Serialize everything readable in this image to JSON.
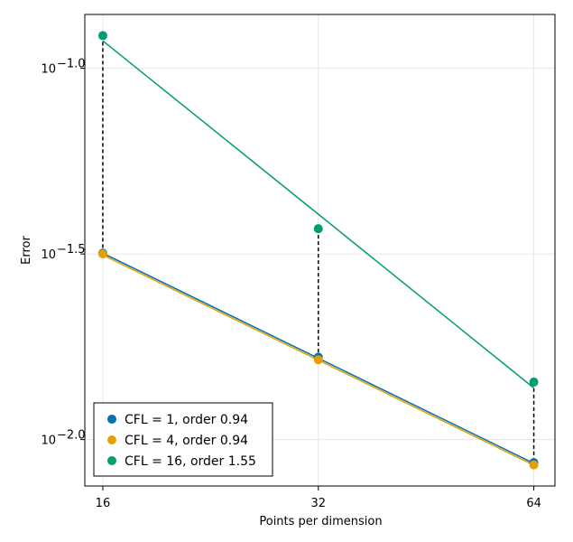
{
  "chart_data": {
    "type": "line",
    "xlabel": "Points per dimension",
    "ylabel": "Error",
    "x": [
      16,
      32,
      64
    ],
    "xscale": "log2",
    "yscale": "log10",
    "xlim": [
      15.1,
      68.5
    ],
    "ylim": [
      -2.125,
      -0.855
    ],
    "x_ticks": [
      {
        "value": 16,
        "label": "16"
      },
      {
        "value": 32,
        "label": "32"
      },
      {
        "value": 64,
        "label": "64"
      }
    ],
    "y_ticks": [
      {
        "value": -1.0,
        "base": "10",
        "exp": "−1.0"
      },
      {
        "value": -1.5,
        "base": "10",
        "exp": "−1.5"
      },
      {
        "value": -2.0,
        "base": "10",
        "exp": "−2.0"
      }
    ],
    "grid": true,
    "legend_position": "bottom-left",
    "series": [
      {
        "name": "CFL = 1, order 0.94",
        "color": "#0072b2",
        "points": [
          -1.498,
          -1.778,
          -2.062
        ],
        "fit": [
          -1.498,
          -1.781,
          -2.064
        ]
      },
      {
        "name": "CFL = 4, order 0.94",
        "color": "#e69f00",
        "points": [
          -1.5,
          -1.785,
          -2.068
        ],
        "fit": [
          -1.503,
          -1.786,
          -2.069
        ]
      },
      {
        "name": "CFL = 16, order 1.55",
        "color": "#009e73",
        "points": [
          -0.912,
          -1.432,
          -1.845
        ],
        "fit": [
          -0.926,
          -1.393,
          -1.861
        ]
      }
    ],
    "droplines": {
      "color": "#000000",
      "style": "dashed"
    }
  }
}
